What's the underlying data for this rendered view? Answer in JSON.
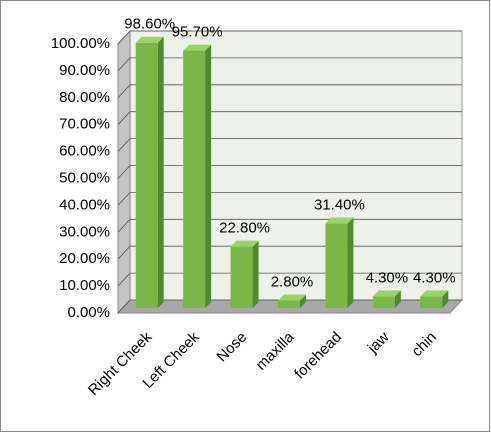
{
  "chart_data": {
    "type": "bar3d",
    "categories": [
      "Right Cheek",
      "Left Cheek",
      "Nose",
      "maxilla",
      "forehead",
      "jaw",
      "chin"
    ],
    "values": [
      98.6,
      95.7,
      22.8,
      2.8,
      31.4,
      4.3,
      4.3
    ],
    "value_labels": [
      "98.60%",
      "95.70%",
      "22.80%",
      "2.80%",
      "31.40%",
      "4.30%",
      "4.30%"
    ],
    "color": "#7ab648",
    "ylim": [
      0,
      100
    ],
    "yticks": [
      {
        "value": 0,
        "label": "0.00%"
      },
      {
        "value": 10,
        "label": "10.00%"
      },
      {
        "value": 20,
        "label": "20.00%"
      },
      {
        "value": 30,
        "label": "30.00%"
      },
      {
        "value": 40,
        "label": "40.00%"
      },
      {
        "value": 50,
        "label": "50.00%"
      },
      {
        "value": 60,
        "label": "60.00%"
      },
      {
        "value": 70,
        "label": "70.00%"
      },
      {
        "value": 80,
        "label": "80.00%"
      },
      {
        "value": 90,
        "label": "90.00%"
      },
      {
        "value": 100,
        "label": "100.00%"
      }
    ],
    "grid": true
  }
}
